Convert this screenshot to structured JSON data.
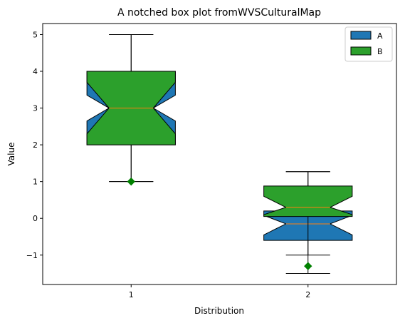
{
  "chart_data": {
    "type": "boxplot",
    "title": "A notched box plot fromWVSCulturalMap",
    "xlabel": "Distribution",
    "ylabel": "Value",
    "categories": [
      "1",
      "2"
    ],
    "xlim": [
      0.5,
      2.5
    ],
    "ylim": [
      -1.8,
      5.3
    ],
    "yticks": [
      -1,
      0,
      1,
      2,
      3,
      4,
      5
    ],
    "yticklabels": [
      "−1",
      "0",
      "1",
      "2",
      "3",
      "4",
      "5"
    ],
    "legend_position": "top-right",
    "grid": false,
    "series": [
      {
        "name": "A",
        "color": "#1f77b4",
        "boxes": [
          {
            "x": 1,
            "whislo": 1.0,
            "q1": 2.0,
            "median": 3.0,
            "q3": 4.0,
            "whishi": 5.0,
            "notch_lo": 2.65,
            "notch_hi": 3.35,
            "fliers": []
          },
          {
            "x": 2,
            "whislo": -1.0,
            "q1": -0.6,
            "median": -0.15,
            "q3": 0.2,
            "whishi": 1.27,
            "notch_lo": -0.45,
            "notch_hi": 0.08,
            "fliers": []
          }
        ]
      },
      {
        "name": "B",
        "color": "#2ca02c",
        "boxes": [
          {
            "x": 1,
            "whislo": 1.0,
            "q1": 2.0,
            "median": 3.0,
            "q3": 4.0,
            "whishi": 5.0,
            "notch_lo": 2.3,
            "notch_hi": 3.7,
            "fliers": [
              1.0
            ]
          },
          {
            "x": 2,
            "whislo": -1.5,
            "q1": 0.05,
            "median": 0.3,
            "q3": 0.88,
            "whishi": 1.27,
            "notch_lo": 0.1,
            "notch_hi": 0.6,
            "fliers": [
              -1.3
            ]
          }
        ]
      }
    ],
    "median_color": "#ff7f0e",
    "flier_color": "#008000"
  }
}
